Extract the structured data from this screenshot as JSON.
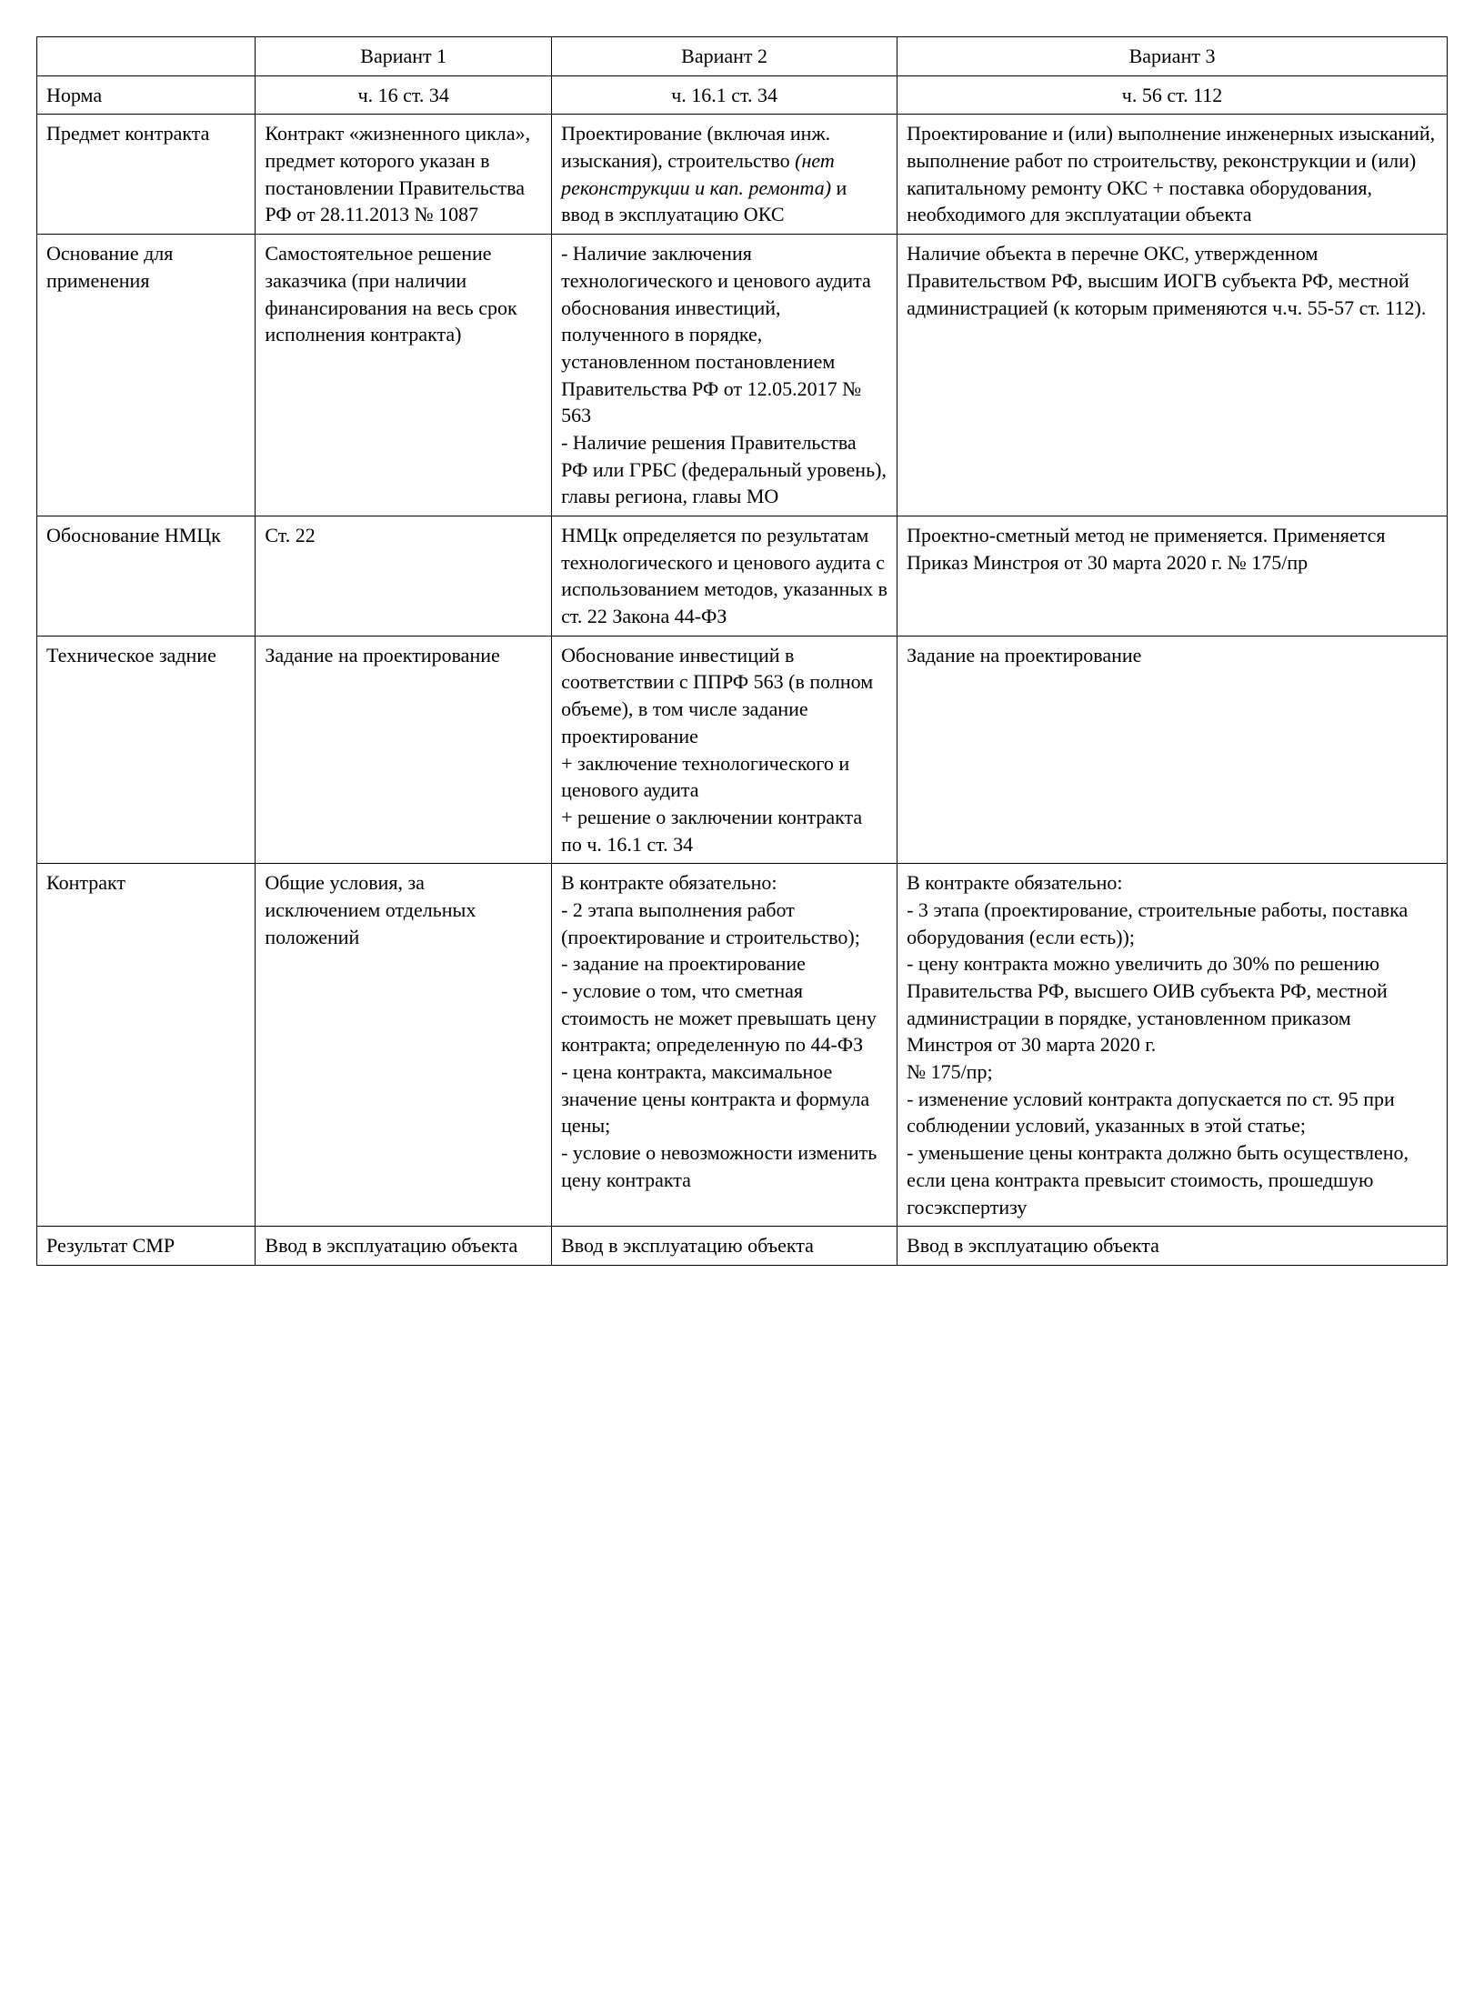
{
  "meta": {
    "font_family": "Times New Roman",
    "font_size_pt": 22,
    "text_color": "#000000",
    "border_color": "#000000",
    "background_color": "#ffffff",
    "column_widths_pct": [
      15.5,
      21,
      24.5,
      39
    ]
  },
  "headers": {
    "blank": "",
    "v1": "Вариант 1",
    "v2": "Вариант 2",
    "v3": "Вариант 3"
  },
  "rows": {
    "norm": {
      "label": "Норма",
      "v1": "ч. 16 ст. 34",
      "v2": "ч. 16.1 ст. 34",
      "v3": "ч. 56 ст. 112"
    },
    "subject": {
      "label": "Предмет контракта",
      "v1": "Контракт «жизненного цикла», предмет которого указан в постановлении Правительства РФ от 28.11.2013 № 1087",
      "v2_pre": "Проектирование (включая инж. изыскания), строительство ",
      "v2_italic": "(нет реконструкции и кап. ремонта)",
      "v2_post": " и ввод  в эксплуатацию ОКС",
      "v3": "Проектирование и (или) выполнение инженерных изысканий, выполнение работ по строительству, реконструкции и (или) капитальному ремонту ОКС + поставка оборудования, необходимого для эксплуатации объекта"
    },
    "basis": {
      "label": "Основание для применения",
      "v1": "Самостоятельное решение заказчика (при наличии финансирования на весь срок исполнения контракта)",
      "v2_l1": "- Наличие заключения технологического и ценового аудита обоснования инвестиций, полученного в порядке, установленном постановлением Правительства РФ от 12.05.2017 № 563",
      "v2_l2": "- Наличие решения Правительства РФ или ГРБС (федеральный уровень), главы региона, главы МО",
      "v3": "Наличие объекта в перечне ОКС, утвержденном Правительством РФ, высшим ИОГВ субъекта РФ, местной администрацией (к которым применяются ч.ч. 55-57 ст. 112)."
    },
    "nmck": {
      "label": "Обоснование НМЦк",
      "v1": "Ст. 22",
      "v2": "НМЦк определяется по результатам технологического и ценового аудита с использованием методов, указанных в ст. 22 Закона 44-ФЗ",
      "v3": "Проектно-сметный метод не применяется. Применяется Приказ Минстроя от 30 марта 2020 г. № 175/пр"
    },
    "tech": {
      "label": "Техническое задние",
      "v1": "Задание на проектирование",
      "v2_l1": "Обоснование инвестиций в соответствии с ППРФ 563 (в полном объеме), в том числе задание проектирование",
      "v2_l2": "+ заключение технологического и ценового аудита",
      "v2_l3": "+ решение о заключении контракта по ч. 16.1 ст. 34",
      "v3": "Задание на проектирование"
    },
    "contract": {
      "label": "Контракт",
      "v1": "Общие условия, за исключением отдельных положений",
      "v2_l1": "В контракте обязательно:",
      "v2_l2": "- 2 этапа выполнения работ (проектирование и строительство);",
      "v2_l3": "- задание на проектирование",
      "v2_l4": "- условие о том, что сметная стоимость не может превышать цену контракта; определенную по 44-ФЗ",
      "v2_l5": "- цена контракта, максимальное значение цены контракта и формула цены;",
      "v2_l6": "- условие о невозможности изменить цену контракта",
      "v3_l1": "В контракте обязательно:",
      "v3_l2": "- 3 этапа (проектирование, строительные работы, поставка оборудования (если есть));",
      "v3_l3": "- цену контракта можно увеличить до 30% по решению Правительства РФ, высшего ОИВ субъекта РФ, местной администрации в порядке, установленном приказом Минстроя от 30 марта 2020 г.",
      "v3_l4": "№ 175/пр;",
      "v3_l5": "- изменение условий контракта допускается по ст. 95 при соблюдении условий, указанных в этой статье;",
      "v3_l6": "- уменьшение цены контракта должно быть осуществлено, если цена контракта превысит стоимость, прошедшую госэкспертизу"
    },
    "result": {
      "label": "Результат СМР",
      "v1": "Ввод в эксплуатацию объекта",
      "v2": "Ввод в эксплуатацию объекта",
      "v3": "Ввод в эксплуатацию объекта"
    }
  }
}
